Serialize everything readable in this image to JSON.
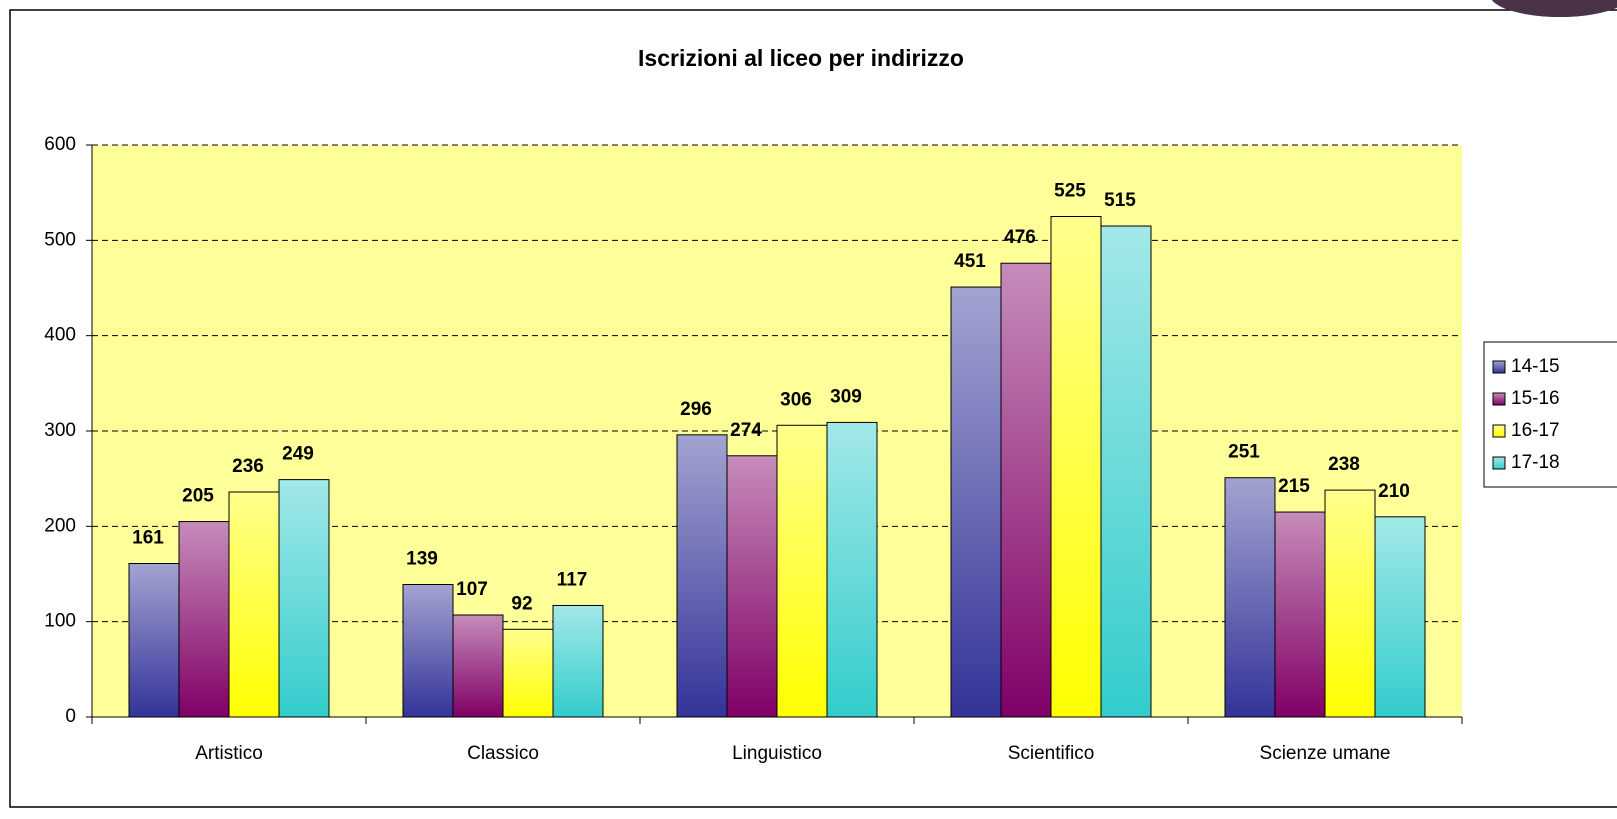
{
  "chart_data": {
    "type": "bar",
    "title": "Iscrizioni al liceo per indirizzo",
    "categories": [
      "Artistico",
      "Classico",
      "Linguistico",
      "Scientifico",
      "Scienze umane"
    ],
    "series": [
      {
        "name": "14-15",
        "color": "#333399",
        "values": [
          161,
          139,
          296,
          451,
          251
        ]
      },
      {
        "name": "15-16",
        "color": "#800066",
        "values": [
          205,
          107,
          274,
          476,
          215
        ]
      },
      {
        "name": "16-17",
        "color": "#ffff00",
        "values": [
          236,
          92,
          306,
          525,
          238
        ]
      },
      {
        "name": "17-18",
        "color": "#33cccc",
        "values": [
          249,
          117,
          309,
          515,
          210
        ]
      }
    ],
    "ylim": [
      0,
      600
    ],
    "yticks": [
      0,
      100,
      200,
      300,
      400,
      500,
      600
    ],
    "grid": true,
    "legend": "right",
    "plot_background": "#ffff99"
  }
}
